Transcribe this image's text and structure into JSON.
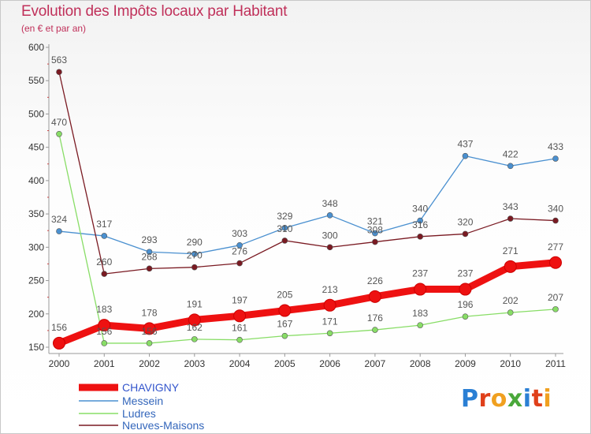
{
  "chart_data": {
    "type": "line",
    "title": "Evolution des Impôts locaux par Habitant",
    "subtitle": "(en € et par an)",
    "x": [
      "2000",
      "2001",
      "2002",
      "2003",
      "2004",
      "2005",
      "2006",
      "2007",
      "2008",
      "2009",
      "2010",
      "2011"
    ],
    "yticks": [
      "600",
      "550",
      "500",
      "450",
      "400",
      "350",
      "300",
      "250",
      "200",
      "150"
    ],
    "ylim": [
      150,
      600
    ],
    "grid": false,
    "legend_position": "bottom-left",
    "series": [
      {
        "name": "CHAVIGNY",
        "color": "#ee1111",
        "values": [
          156,
          183,
          178,
          191,
          197,
          205,
          213,
          226,
          237,
          237,
          271,
          277
        ]
      },
      {
        "name": "Messein",
        "color": "#4a90d0",
        "values": [
          324,
          317,
          293,
          290,
          303,
          329,
          348,
          321,
          340,
          437,
          422,
          433
        ]
      },
      {
        "name": "Ludres",
        "color": "#88dd66",
        "values": [
          470,
          156,
          156,
          162,
          161,
          167,
          171,
          176,
          183,
          196,
          202,
          207
        ]
      },
      {
        "name": "Neuves-Maisons",
        "color": "#7a1a22",
        "values": [
          563,
          260,
          268,
          270,
          276,
          310,
          300,
          308,
          316,
          320,
          343,
          340
        ]
      }
    ]
  },
  "logo": {
    "text": "Proxiti",
    "letters": [
      "P",
      "r",
      "o",
      "x",
      "i",
      "t",
      "i"
    ],
    "colors": [
      "#2a7fd4",
      "#e0401a",
      "#f0a020",
      "#4aa83a",
      "#2a7fd4",
      "#e0401a",
      "#f0a020"
    ]
  }
}
